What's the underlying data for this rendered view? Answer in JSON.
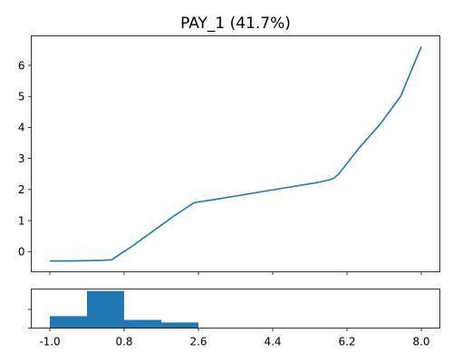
{
  "chart_data": [
    {
      "type": "line",
      "title": "PAY_1 (41.7%)",
      "xlabel": "",
      "ylabel": "",
      "xlim": [
        -1.45,
        8.45
      ],
      "ylim": [
        -0.65,
        6.95
      ],
      "yticks": [
        0,
        1,
        2,
        3,
        4,
        5,
        6
      ],
      "ytick_labels": [
        "0",
        "1",
        "2",
        "3",
        "4",
        "5",
        "6"
      ],
      "xticks": [
        -1.0,
        0.8,
        2.6,
        4.4,
        6.2,
        8.0
      ],
      "series": [
        {
          "color": "#1f77b4",
          "x": [
            -1.0,
            -0.5,
            0.0,
            0.3,
            0.5,
            1.0,
            1.5,
            2.0,
            2.5,
            3.0,
            4.0,
            5.0,
            5.5,
            5.8,
            5.9,
            6.0,
            6.5,
            7.0,
            7.5,
            8.0
          ],
          "y": [
            -0.3,
            -0.3,
            -0.29,
            -0.28,
            -0.26,
            0.18,
            0.66,
            1.14,
            1.58,
            1.68,
            1.9,
            2.12,
            2.23,
            2.32,
            2.38,
            2.5,
            3.35,
            4.1,
            5.0,
            6.6
          ]
        }
      ],
      "grid": false,
      "legend": "none"
    },
    {
      "type": "bar",
      "subtype": "histogram",
      "xlim": [
        -1.45,
        8.45
      ],
      "xticks": [
        -1.0,
        0.8,
        2.6,
        4.4,
        6.2,
        8.0
      ],
      "xtick_labels": [
        "-1.0",
        "0.8",
        "2.6",
        "4.4",
        "6.2",
        "8.0"
      ],
      "bins": [
        {
          "start": -1.0,
          "end": -0.1,
          "value": 0.32
        },
        {
          "start": -0.1,
          "end": 0.8,
          "value": 1.0
        },
        {
          "start": 0.8,
          "end": 1.7,
          "value": 0.22
        },
        {
          "start": 1.7,
          "end": 2.6,
          "value": 0.15
        }
      ],
      "ylim": [
        0,
        1.05
      ],
      "color": "#1f77b4"
    }
  ]
}
